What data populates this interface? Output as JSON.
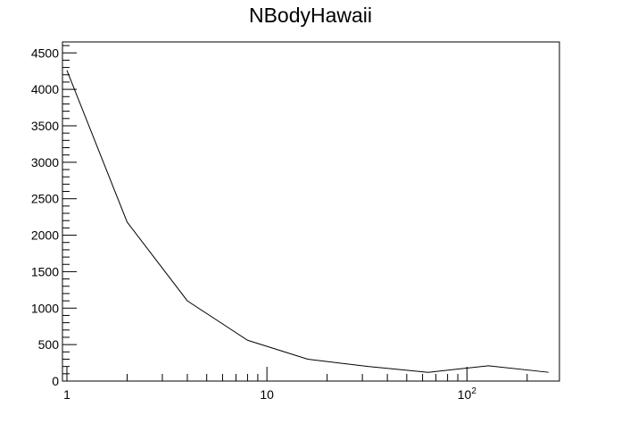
{
  "chart_data": {
    "type": "line",
    "title": "NBodyHawaii",
    "xlabel": "",
    "ylabel": "",
    "x_scale": "log",
    "xlim": [
      0.95,
      290
    ],
    "ylim": [
      0,
      4650
    ],
    "grid": false,
    "legend": "none",
    "x_tick_labels": [
      {
        "value": 1,
        "base": "1",
        "exp": ""
      },
      {
        "value": 10,
        "base": "10",
        "exp": ""
      },
      {
        "value": 100,
        "base": "10",
        "exp": "2"
      }
    ],
    "y_ticks": [
      0,
      500,
      1000,
      1500,
      2000,
      2500,
      3000,
      3500,
      4000,
      4500
    ],
    "y_tick_labels": [
      "0",
      "500",
      "1000",
      "1500",
      "2000",
      "2500",
      "3000",
      "3500",
      "4000",
      "4500"
    ],
    "series": [
      {
        "color": "#000000",
        "x": [
          1,
          2,
          4,
          8,
          16,
          32,
          64,
          128,
          256
        ],
        "y": [
          4260,
          2180,
          1100,
          560,
          300,
          200,
          120,
          210,
          120
        ]
      }
    ]
  }
}
